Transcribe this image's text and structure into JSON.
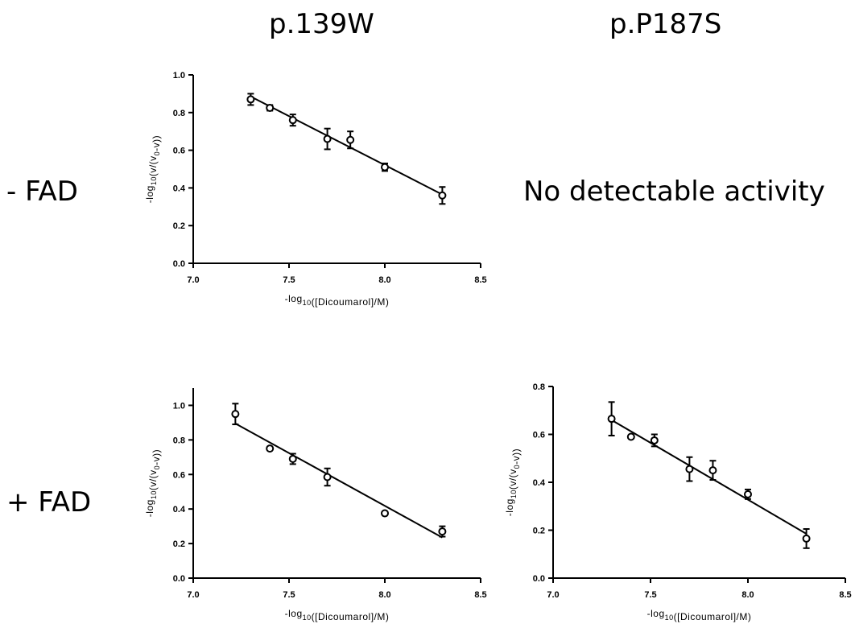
{
  "header": {
    "col1": "p.139W",
    "col2": "p.P187S"
  },
  "rows": {
    "row1": "- FAD",
    "row2": "+ FAD"
  },
  "no_activity_text": "No detectable activity",
  "chart_data": [
    {
      "id": "p139W-minusFAD",
      "type": "scatter",
      "xlabel": "-log10([Dicoumarol]/M)",
      "ylabel": "-log10(v/(v0-v))",
      "xlim": [
        7.0,
        8.5
      ],
      "ylim": [
        0.0,
        1.0
      ],
      "xticks": [
        "7.0",
        "7.5",
        "8.0",
        "8.5"
      ],
      "yticks": [
        "0.0",
        "0.2",
        "0.4",
        "0.6",
        "0.8",
        "1.0"
      ],
      "points": [
        {
          "x": 7.3,
          "y": 0.87,
          "err": 0.03
        },
        {
          "x": 7.4,
          "y": 0.825,
          "err": 0.015
        },
        {
          "x": 7.52,
          "y": 0.76,
          "err": 0.03
        },
        {
          "x": 7.7,
          "y": 0.66,
          "err": 0.055
        },
        {
          "x": 7.82,
          "y": 0.655,
          "err": 0.045
        },
        {
          "x": 8.0,
          "y": 0.51,
          "err": 0.02
        },
        {
          "x": 8.3,
          "y": 0.36,
          "err": 0.045
        }
      ],
      "fit": {
        "x": [
          7.3,
          8.3
        ],
        "y": [
          0.885,
          0.365
        ]
      },
      "grid": false
    },
    {
      "id": "p139W-plusFAD",
      "type": "scatter",
      "xlabel": "-log10([Dicoumarol]/M)",
      "ylabel": "-log10(v/(v0-v))",
      "xlim": [
        7.0,
        8.5
      ],
      "ylim": [
        0.0,
        1.1
      ],
      "xticks": [
        "7.0",
        "7.5",
        "8.0",
        "8.5"
      ],
      "yticks": [
        "0.0",
        "0.2",
        "0.4",
        "0.6",
        "0.8",
        "1.0"
      ],
      "points": [
        {
          "x": 7.22,
          "y": 0.95,
          "err": 0.06
        },
        {
          "x": 7.4,
          "y": 0.75,
          "err": 0.0
        },
        {
          "x": 7.52,
          "y": 0.69,
          "err": 0.03
        },
        {
          "x": 7.7,
          "y": 0.585,
          "err": 0.05
        },
        {
          "x": 8.0,
          "y": 0.375,
          "err": 0.0
        },
        {
          "x": 8.3,
          "y": 0.27,
          "err": 0.03
        }
      ],
      "fit": {
        "x": [
          7.22,
          8.3
        ],
        "y": [
          0.895,
          0.235
        ]
      },
      "grid": false
    },
    {
      "id": "pP187S-plusFAD",
      "type": "scatter",
      "xlabel": "-log10([Dicoumarol]/M)",
      "ylabel": "-log10(v/(v0-v))",
      "xlim": [
        7.0,
        8.5
      ],
      "ylim": [
        0.0,
        0.8
      ],
      "xticks": [
        "7.0",
        "7.5",
        "8.0",
        "8.5"
      ],
      "yticks": [
        "0.0",
        "0.2",
        "0.4",
        "0.6",
        "0.8"
      ],
      "points": [
        {
          "x": 7.3,
          "y": 0.665,
          "err": 0.07
        },
        {
          "x": 7.4,
          "y": 0.59,
          "err": 0.0
        },
        {
          "x": 7.52,
          "y": 0.575,
          "err": 0.025
        },
        {
          "x": 7.7,
          "y": 0.455,
          "err": 0.05
        },
        {
          "x": 7.82,
          "y": 0.45,
          "err": 0.04
        },
        {
          "x": 8.0,
          "y": 0.35,
          "err": 0.02
        },
        {
          "x": 8.3,
          "y": 0.165,
          "err": 0.04
        }
      ],
      "fit": {
        "x": [
          7.3,
          8.3
        ],
        "y": [
          0.66,
          0.185
        ]
      },
      "grid": false
    }
  ]
}
